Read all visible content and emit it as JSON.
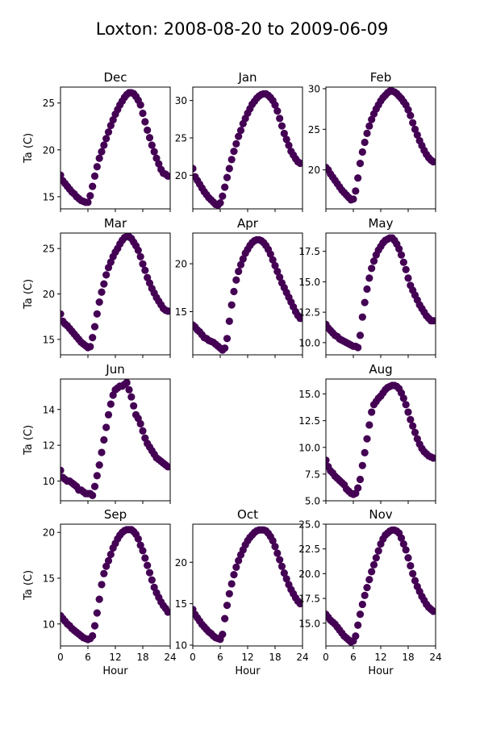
{
  "figure": {
    "title": "Loxton: 2008-08-20 to 2009-06-09"
  },
  "chart_data": [
    {
      "type": "scatter",
      "title": "Dec",
      "xlabel": "",
      "ylabel": "Ta (C)",
      "xlim": [
        0,
        24
      ],
      "ylim": [
        13.7,
        26.7
      ],
      "yticks": [
        15,
        20,
        25
      ],
      "xticks": [
        0,
        6,
        12,
        18,
        24
      ],
      "show_xticklabels": false,
      "marker_color": "#440154",
      "grid": false,
      "x": [
        0,
        0.5,
        1,
        1.5,
        2,
        2.5,
        3,
        3.5,
        4,
        4.5,
        5,
        5.5,
        6,
        6.5,
        7,
        7.5,
        8,
        8.5,
        9,
        9.5,
        10,
        10.5,
        11,
        11.5,
        12,
        12.5,
        13,
        13.5,
        14,
        14.5,
        15,
        15.5,
        16,
        16.5,
        17,
        17.5,
        18,
        18.5,
        19,
        19.5,
        20,
        20.5,
        21,
        21.5,
        22,
        22.5,
        23,
        23.5
      ],
      "y": [
        17.3,
        16.7,
        16.4,
        16.1,
        15.8,
        15.5,
        15.3,
        15.0,
        14.8,
        14.6,
        14.5,
        14.4,
        14.4,
        15.1,
        16.1,
        17.2,
        18.2,
        19.1,
        19.8,
        20.5,
        21.2,
        21.9,
        22.6,
        23.2,
        23.8,
        24.3,
        24.8,
        25.2,
        25.6,
        25.9,
        26.1,
        26.1,
        26.0,
        25.7,
        25.3,
        24.8,
        23.9,
        23.0,
        22.1,
        21.3,
        20.5,
        19.8,
        19.1,
        18.5,
        17.9,
        17.5,
        17.4,
        17.2
      ]
    },
    {
      "type": "scatter",
      "title": "Jan",
      "xlabel": "",
      "ylabel": "",
      "xlim": [
        0,
        24
      ],
      "ylim": [
        15.5,
        31.8
      ],
      "yticks": [
        20,
        25,
        30
      ],
      "xticks": [
        0,
        6,
        12,
        18,
        24
      ],
      "show_xticklabels": false,
      "marker_color": "#440154",
      "grid": false,
      "x": [
        0,
        0.5,
        1,
        1.5,
        2,
        2.5,
        3,
        3.5,
        4,
        4.5,
        5,
        5.5,
        6,
        6.5,
        7,
        7.5,
        8,
        8.5,
        9,
        9.5,
        10,
        10.5,
        11,
        11.5,
        12,
        12.5,
        13,
        13.5,
        14,
        14.5,
        15,
        15.5,
        16,
        16.5,
        17,
        17.5,
        18,
        18.5,
        19,
        19.5,
        20,
        20.5,
        21,
        21.5,
        22,
        22.5,
        23,
        23.5
      ],
      "y": [
        20.9,
        19.8,
        19.3,
        18.8,
        18.3,
        17.8,
        17.4,
        17.0,
        16.7,
        16.4,
        16.1,
        16.0,
        16.3,
        17.2,
        18.4,
        19.7,
        20.9,
        22.1,
        23.2,
        24.2,
        25.2,
        26.0,
        26.9,
        27.6,
        28.3,
        28.9,
        29.5,
        29.9,
        30.3,
        30.6,
        30.8,
        30.9,
        30.9,
        30.7,
        30.4,
        30.0,
        29.4,
        28.6,
        27.6,
        26.6,
        25.6,
        24.8,
        24.0,
        23.2,
        22.7,
        22.2,
        21.8,
        21.6
      ]
    },
    {
      "type": "scatter",
      "title": "Feb",
      "xlabel": "",
      "ylabel": "",
      "xlim": [
        0,
        24
      ],
      "ylim": [
        15.2,
        30.2
      ],
      "yticks": [
        20,
        25,
        30
      ],
      "xticks": [
        0,
        6,
        12,
        18,
        24
      ],
      "show_xticklabels": false,
      "marker_color": "#440154",
      "grid": false,
      "x": [
        0,
        0.5,
        1,
        1.5,
        2,
        2.5,
        3,
        3.5,
        4,
        4.5,
        5,
        5.5,
        6,
        6.5,
        7,
        7.5,
        8,
        8.5,
        9,
        9.5,
        10,
        10.5,
        11,
        11.5,
        12,
        12.5,
        13,
        13.5,
        14,
        14.5,
        15,
        15.5,
        16,
        16.5,
        17,
        17.5,
        18,
        18.5,
        19,
        19.5,
        20,
        20.5,
        21,
        21.5,
        22,
        22.5,
        23,
        23.5
      ],
      "y": [
        20.3,
        20.0,
        19.5,
        19.1,
        18.7,
        18.3,
        17.9,
        17.5,
        17.2,
        16.9,
        16.6,
        16.3,
        16.4,
        17.4,
        19.0,
        20.8,
        22.2,
        23.4,
        24.5,
        25.4,
        26.2,
        26.9,
        27.5,
        28.0,
        28.5,
        28.9,
        29.2,
        29.5,
        29.7,
        29.7,
        29.6,
        29.4,
        29.1,
        28.8,
        28.4,
        28.0,
        27.4,
        26.7,
        25.8,
        25.0,
        24.3,
        23.6,
        23.0,
        22.4,
        21.9,
        21.5,
        21.2,
        21.0
      ]
    },
    {
      "type": "scatter",
      "title": "Mar",
      "xlabel": "",
      "ylabel": "Ta (C)",
      "xlim": [
        0,
        24
      ],
      "ylim": [
        13.3,
        26.7
      ],
      "yticks": [
        15,
        20,
        25
      ],
      "xticks": [
        0,
        6,
        12,
        18,
        24
      ],
      "show_xticklabels": false,
      "marker_color": "#440154",
      "grid": false,
      "x": [
        0,
        0.5,
        1,
        1.5,
        2,
        2.5,
        3,
        3.5,
        4,
        4.5,
        5,
        5.5,
        6,
        6.5,
        7,
        7.5,
        8,
        8.5,
        9,
        9.5,
        10,
        10.5,
        11,
        11.5,
        12,
        12.5,
        13,
        13.5,
        14,
        14.5,
        15,
        15.5,
        16,
        16.5,
        17,
        17.5,
        18,
        18.5,
        19,
        19.5,
        20,
        20.5,
        21,
        21.5,
        22,
        22.5,
        23,
        23.5
      ],
      "y": [
        17.8,
        17.0,
        16.7,
        16.5,
        16.2,
        15.9,
        15.6,
        15.3,
        15.0,
        14.7,
        14.5,
        14.3,
        14.1,
        14.2,
        15.2,
        16.4,
        17.8,
        19.1,
        20.2,
        21.1,
        22.1,
        22.9,
        23.5,
        24.1,
        24.6,
        25.0,
        25.5,
        25.9,
        26.2,
        26.3,
        26.3,
        26.1,
        25.7,
        25.3,
        24.8,
        24.1,
        23.3,
        22.6,
        21.8,
        21.2,
        20.6,
        20.1,
        19.6,
        19.2,
        18.8,
        18.4,
        18.2,
        18.1
      ]
    },
    {
      "type": "scatter",
      "title": "Apr",
      "xlabel": "",
      "ylabel": "",
      "xlim": [
        0,
        24
      ],
      "ylim": [
        10.5,
        23.2
      ],
      "yticks": [
        15,
        20
      ],
      "xticks": [
        0,
        6,
        12,
        18,
        24
      ],
      "show_xticklabels": false,
      "marker_color": "#440154",
      "grid": false,
      "x": [
        0,
        0.5,
        1,
        1.5,
        2,
        2.5,
        3,
        3.5,
        4,
        4.5,
        5,
        5.5,
        6,
        6.5,
        7,
        7.5,
        8,
        8.5,
        9,
        9.5,
        10,
        10.5,
        11,
        11.5,
        12,
        12.5,
        13,
        13.5,
        14,
        14.5,
        15,
        15.5,
        16,
        16.5,
        17,
        17.5,
        18,
        18.5,
        19,
        19.5,
        20,
        20.5,
        21,
        21.5,
        22,
        22.5,
        23,
        23.5
      ],
      "y": [
        13.6,
        13.4,
        13.1,
        12.9,
        12.6,
        12.3,
        12.2,
        12.0,
        11.9,
        11.8,
        11.6,
        11.4,
        11.2,
        11.0,
        11.2,
        12.2,
        14.0,
        15.7,
        17.1,
        18.3,
        19.2,
        19.9,
        20.5,
        21.1,
        21.5,
        21.9,
        22.2,
        22.4,
        22.5,
        22.5,
        22.4,
        22.2,
        21.9,
        21.5,
        21.0,
        20.4,
        19.8,
        19.2,
        18.6,
        18.0,
        17.5,
        17.0,
        16.5,
        16.0,
        15.5,
        15.0,
        14.6,
        14.3
      ]
    },
    {
      "type": "scatter",
      "title": "May",
      "xlabel": "",
      "ylabel": "",
      "xlim": [
        0,
        24
      ],
      "ylim": [
        9.0,
        19.0
      ],
      "yticks": [
        10.0,
        12.5,
        15.0,
        17.5
      ],
      "ytick_labels": [
        "10.0",
        "12.5",
        "15.0",
        "17.5"
      ],
      "xticks": [
        0,
        6,
        12,
        18,
        24
      ],
      "show_xticklabels": false,
      "marker_color": "#440154",
      "grid": false,
      "x": [
        0,
        0.5,
        1,
        1.5,
        2,
        2.5,
        3,
        3.5,
        4,
        4.5,
        5,
        5.5,
        6,
        6.5,
        7,
        7.5,
        8,
        8.5,
        9,
        9.5,
        10,
        10.5,
        11,
        11.5,
        12,
        12.5,
        13,
        13.5,
        14,
        14.5,
        15,
        15.5,
        16,
        16.5,
        17,
        17.5,
        18,
        18.5,
        19,
        19.5,
        20,
        20.5,
        21,
        21.5,
        22,
        22.5,
        23,
        23.5
      ],
      "y": [
        11.5,
        11.2,
        11.0,
        10.8,
        10.6,
        10.5,
        10.3,
        10.2,
        10.1,
        10.0,
        9.9,
        9.8,
        9.7,
        9.7,
        9.6,
        10.6,
        12.1,
        13.3,
        14.4,
        15.3,
        16.1,
        16.7,
        17.2,
        17.6,
        17.9,
        18.2,
        18.4,
        18.5,
        18.6,
        18.6,
        18.4,
        18.1,
        17.7,
        17.2,
        16.6,
        16.0,
        15.3,
        14.7,
        14.3,
        13.9,
        13.5,
        13.1,
        12.8,
        12.5,
        12.2,
        12.0,
        11.8,
        11.8
      ]
    },
    {
      "type": "scatter",
      "title": "Jun",
      "xlabel": "",
      "ylabel": "Ta (C)",
      "xlim": [
        0,
        24
      ],
      "ylim": [
        8.9,
        15.7
      ],
      "yticks": [
        10,
        12,
        14
      ],
      "xticks": [
        0,
        6,
        12,
        18,
        24
      ],
      "show_xticklabels": false,
      "marker_color": "#440154",
      "grid": false,
      "x": [
        0,
        0.5,
        1,
        1.5,
        2,
        2.5,
        3,
        3.5,
        4,
        4.5,
        5,
        5.5,
        6,
        6.5,
        7,
        7.5,
        8,
        8.5,
        9,
        9.5,
        10,
        10.5,
        11,
        11.5,
        12,
        12.5,
        13,
        13.5,
        14,
        14.5,
        15,
        15.5,
        16,
        16.5,
        17,
        17.5,
        18,
        18.5,
        19,
        19.5,
        20,
        20.5,
        21,
        21.5,
        22,
        22.5,
        23,
        23.5
      ],
      "y": [
        10.6,
        10.2,
        10.1,
        10.0,
        10.0,
        9.9,
        9.8,
        9.7,
        9.5,
        9.5,
        9.4,
        9.3,
        9.3,
        9.3,
        9.2,
        9.7,
        10.3,
        10.9,
        11.6,
        12.3,
        13.0,
        13.7,
        14.3,
        14.8,
        15.1,
        15.2,
        15.3,
        15.3,
        15.4,
        15.5,
        15.1,
        14.7,
        14.2,
        13.7,
        13.5,
        13.2,
        12.8,
        12.4,
        12.1,
        11.9,
        11.7,
        11.5,
        11.3,
        11.2,
        11.1,
        11.0,
        10.9,
        10.8
      ]
    },
    {
      "type": "scatter",
      "title": "Aug",
      "xlabel": "",
      "ylabel": "",
      "xlim": [
        0,
        24
      ],
      "ylim": [
        5.0,
        16.4
      ],
      "yticks": [
        5.0,
        7.5,
        10.0,
        12.5,
        15.0
      ],
      "ytick_labels": [
        "5.0",
        "7.5",
        "10.0",
        "12.5",
        "15.0"
      ],
      "xticks": [
        0,
        6,
        12,
        18,
        24
      ],
      "show_xticklabels": false,
      "marker_color": "#440154",
      "grid": false,
      "x": [
        0,
        0.5,
        1,
        1.5,
        2,
        2.5,
        3,
        3.5,
        4,
        4.5,
        5,
        5.5,
        6,
        6.5,
        7,
        7.5,
        8,
        8.5,
        9,
        9.5,
        10,
        10.5,
        11,
        11.5,
        12,
        12.5,
        13,
        13.5,
        14,
        14.5,
        15,
        15.5,
        16,
        16.5,
        17,
        17.5,
        18,
        18.5,
        19,
        19.5,
        20,
        20.5,
        21,
        21.5,
        22,
        22.5,
        23,
        23.5
      ],
      "y": [
        8.8,
        8.2,
        7.8,
        7.6,
        7.3,
        7.1,
        6.9,
        6.7,
        6.5,
        6.1,
        5.9,
        5.7,
        5.6,
        5.7,
        6.2,
        7.0,
        8.3,
        9.5,
        10.8,
        12.1,
        13.3,
        14.0,
        14.3,
        14.6,
        14.8,
        15.1,
        15.4,
        15.6,
        15.7,
        15.8,
        15.8,
        15.7,
        15.5,
        15.1,
        14.6,
        14.0,
        13.3,
        12.6,
        12.0,
        11.4,
        10.8,
        10.3,
        9.9,
        9.6,
        9.4,
        9.2,
        9.1,
        9.0
      ]
    },
    {
      "type": "scatter",
      "title": "Sep",
      "xlabel": "Hour",
      "ylabel": "Ta (C)",
      "xlim": [
        0,
        24
      ],
      "ylim": [
        7.6,
        20.9
      ],
      "yticks": [
        10,
        15,
        20
      ],
      "xticks": [
        0,
        6,
        12,
        18,
        24
      ],
      "show_xticklabels": true,
      "marker_color": "#440154",
      "grid": false,
      "x": [
        0,
        0.5,
        1,
        1.5,
        2,
        2.5,
        3,
        3.5,
        4,
        4.5,
        5,
        5.5,
        6,
        6.5,
        7,
        7.5,
        8,
        8.5,
        9,
        9.5,
        10,
        10.5,
        11,
        11.5,
        12,
        12.5,
        13,
        13.5,
        14,
        14.5,
        15,
        15.5,
        16,
        16.5,
        17,
        17.5,
        18,
        18.5,
        19,
        19.5,
        20,
        20.5,
        21,
        21.5,
        22,
        22.5,
        23,
        23.5
      ],
      "y": [
        10.9,
        10.6,
        10.3,
        10.0,
        9.8,
        9.5,
        9.3,
        9.1,
        8.9,
        8.7,
        8.5,
        8.4,
        8.3,
        8.4,
        8.7,
        9.8,
        11.2,
        12.7,
        14.3,
        15.5,
        16.3,
        16.9,
        17.6,
        18.3,
        18.8,
        19.3,
        19.7,
        20.0,
        20.2,
        20.3,
        20.3,
        20.3,
        20.1,
        19.8,
        19.3,
        18.6,
        18.0,
        17.2,
        16.4,
        15.6,
        14.8,
        14.0,
        13.4,
        12.9,
        12.4,
        12.0,
        11.7,
        11.3
      ]
    },
    {
      "type": "scatter",
      "title": "Oct",
      "xlabel": "Hour",
      "ylabel": "",
      "xlim": [
        0,
        24
      ],
      "ylim": [
        9.9,
        24.6
      ],
      "yticks": [
        10,
        15,
        20
      ],
      "xticks": [
        0,
        6,
        12,
        18,
        24
      ],
      "show_xticklabels": true,
      "marker_color": "#440154",
      "grid": false,
      "x": [
        0,
        0.5,
        1,
        1.5,
        2,
        2.5,
        3,
        3.5,
        4,
        4.5,
        5,
        5.5,
        6,
        6.5,
        7,
        7.5,
        8,
        8.5,
        9,
        9.5,
        10,
        10.5,
        11,
        11.5,
        12,
        12.5,
        13,
        13.5,
        14,
        14.5,
        15,
        15.5,
        16,
        16.5,
        17,
        17.5,
        18,
        18.5,
        19,
        19.5,
        20,
        20.5,
        21,
        21.5,
        22,
        22.5,
        23,
        23.5
      ],
      "y": [
        14.3,
        13.7,
        13.3,
        12.9,
        12.5,
        12.2,
        11.9,
        11.6,
        11.4,
        11.1,
        10.9,
        10.8,
        10.7,
        11.3,
        13.2,
        14.8,
        16.2,
        17.4,
        18.5,
        19.4,
        20.2,
        20.9,
        21.5,
        22.1,
        22.6,
        23.0,
        23.3,
        23.6,
        23.8,
        23.9,
        23.9,
        23.9,
        23.8,
        23.5,
        23.1,
        22.6,
        21.9,
        21.1,
        20.3,
        19.5,
        18.7,
        18.0,
        17.3,
        16.7,
        16.2,
        15.7,
        15.3,
        15.0
      ]
    },
    {
      "type": "scatter",
      "title": "Nov",
      "xlabel": "Hour",
      "ylabel": "",
      "xlim": [
        0,
        24
      ],
      "ylim": [
        12.7,
        25.0
      ],
      "yticks": [
        15.0,
        17.5,
        20.0,
        22.5,
        25.0
      ],
      "ytick_labels": [
        "15.0",
        "17.5",
        "20.0",
        "22.5",
        "25.0"
      ],
      "xticks": [
        0,
        6,
        12,
        18,
        24
      ],
      "show_xticklabels": true,
      "marker_color": "#440154",
      "grid": false,
      "x": [
        0,
        0.5,
        1,
        1.5,
        2,
        2.5,
        3,
        3.5,
        4,
        4.5,
        5,
        5.5,
        6,
        6.5,
        7,
        7.5,
        8,
        8.5,
        9,
        9.5,
        10,
        10.5,
        11,
        11.5,
        12,
        12.5,
        13,
        13.5,
        14,
        14.5,
        15,
        15.5,
        16,
        16.5,
        17,
        17.5,
        18,
        18.5,
        19,
        19.5,
        20,
        20.5,
        21,
        21.5,
        22,
        22.5,
        23,
        23.5
      ],
      "y": [
        15.9,
        15.6,
        15.3,
        15.1,
        14.9,
        14.6,
        14.3,
        14.0,
        13.7,
        13.5,
        13.3,
        13.1,
        13.2,
        13.7,
        14.8,
        15.9,
        16.9,
        17.8,
        18.6,
        19.4,
        20.2,
        20.9,
        21.6,
        22.3,
        23.0,
        23.5,
        23.9,
        24.1,
        24.3,
        24.4,
        24.4,
        24.3,
        24.1,
        23.6,
        23.0,
        22.4,
        21.6,
        20.8,
        20.0,
        19.3,
        18.7,
        18.2,
        17.7,
        17.3,
        16.9,
        16.6,
        16.4,
        16.2
      ]
    }
  ]
}
